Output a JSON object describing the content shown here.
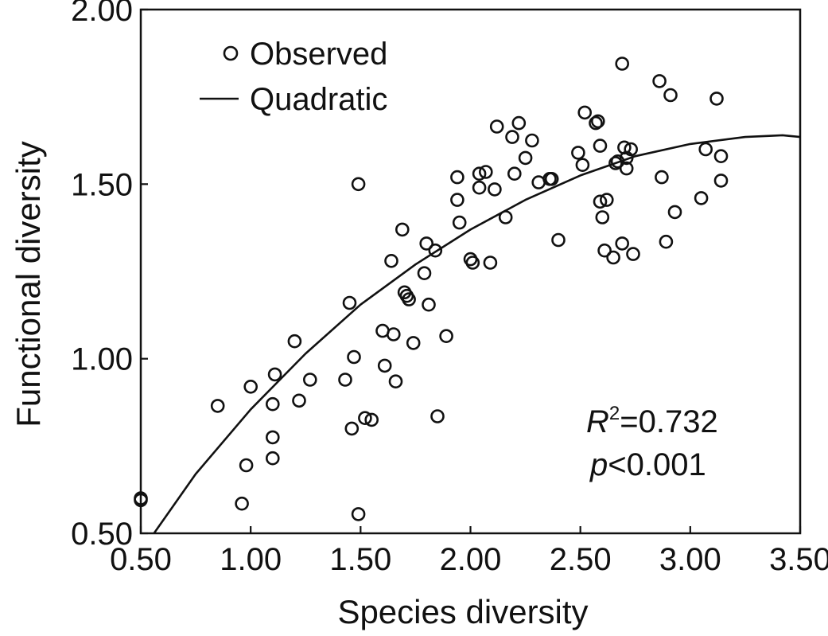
{
  "chart_data": {
    "type": "scatter",
    "xlabel": "Species diversity",
    "ylabel": "Functional diversity",
    "xlim": [
      0.5,
      3.5
    ],
    "ylim": [
      0.5,
      2.0
    ],
    "xticks": [
      "0.50",
      "1.00",
      "1.50",
      "2.00",
      "2.50",
      "3.00",
      "3.50"
    ],
    "yticks": [
      "0.50",
      "1.00",
      "1.50",
      "2.00"
    ],
    "legend": {
      "position": "top-left",
      "entries": [
        {
          "label": "Observed",
          "marker": "open-circle"
        },
        {
          "label": "Quadratic",
          "marker": "line"
        }
      ]
    },
    "annotations": {
      "r2_symbol": "R",
      "r2_sup": "2",
      "r2_value": "=0.732",
      "p_symbol": "p",
      "p_value": "<0.001"
    },
    "grid": false,
    "colors": {
      "points": "#111111",
      "fit_line": "#111111"
    },
    "series": [
      {
        "name": "Observed",
        "type": "scatter",
        "points": [
          [
            0.5,
            0.6
          ],
          [
            0.5,
            0.595
          ],
          [
            0.85,
            0.865
          ],
          [
            0.96,
            0.585
          ],
          [
            0.98,
            0.695
          ],
          [
            1.0,
            0.92
          ],
          [
            1.1,
            0.87
          ],
          [
            1.1,
            0.775
          ],
          [
            1.1,
            0.715
          ],
          [
            1.11,
            0.955
          ],
          [
            1.2,
            1.05
          ],
          [
            1.22,
            0.88
          ],
          [
            1.27,
            0.94
          ],
          [
            1.43,
            0.94
          ],
          [
            1.45,
            1.16
          ],
          [
            1.46,
            0.8
          ],
          [
            1.47,
            1.005
          ],
          [
            1.49,
            1.5
          ],
          [
            1.49,
            0.555
          ],
          [
            1.52,
            0.83
          ],
          [
            1.55,
            0.825
          ],
          [
            1.6,
            1.08
          ],
          [
            1.61,
            0.98
          ],
          [
            1.64,
            1.28
          ],
          [
            1.65,
            1.07
          ],
          [
            1.66,
            0.935
          ],
          [
            1.69,
            1.37
          ],
          [
            1.7,
            1.19
          ],
          [
            1.71,
            1.18
          ],
          [
            1.72,
            1.17
          ],
          [
            1.74,
            1.045
          ],
          [
            1.79,
            1.245
          ],
          [
            1.8,
            1.33
          ],
          [
            1.81,
            1.155
          ],
          [
            1.84,
            1.31
          ],
          [
            1.85,
            0.835
          ],
          [
            1.89,
            1.065
          ],
          [
            1.94,
            1.52
          ],
          [
            1.94,
            1.455
          ],
          [
            1.95,
            1.39
          ],
          [
            2.0,
            1.285
          ],
          [
            2.01,
            1.275
          ],
          [
            2.04,
            1.53
          ],
          [
            2.04,
            1.49
          ],
          [
            2.07,
            1.535
          ],
          [
            2.09,
            1.275
          ],
          [
            2.11,
            1.485
          ],
          [
            2.12,
            1.665
          ],
          [
            2.16,
            1.405
          ],
          [
            2.19,
            1.635
          ],
          [
            2.2,
            1.53
          ],
          [
            2.22,
            1.675
          ],
          [
            2.25,
            1.575
          ],
          [
            2.28,
            1.625
          ],
          [
            2.31,
            1.505
          ],
          [
            2.36,
            1.515
          ],
          [
            2.37,
            1.515
          ],
          [
            2.4,
            1.34
          ],
          [
            2.49,
            1.59
          ],
          [
            2.51,
            1.555
          ],
          [
            2.52,
            1.705
          ],
          [
            2.57,
            1.675
          ],
          [
            2.58,
            1.68
          ],
          [
            2.59,
            1.61
          ],
          [
            2.59,
            1.45
          ],
          [
            2.6,
            1.405
          ],
          [
            2.61,
            1.31
          ],
          [
            2.62,
            1.455
          ],
          [
            2.65,
            1.29
          ],
          [
            2.66,
            1.56
          ],
          [
            2.67,
            1.565
          ],
          [
            2.69,
            1.845
          ],
          [
            2.69,
            1.33
          ],
          [
            2.7,
            1.605
          ],
          [
            2.71,
            1.575
          ],
          [
            2.71,
            1.545
          ],
          [
            2.73,
            1.6
          ],
          [
            2.74,
            1.3
          ],
          [
            2.86,
            1.795
          ],
          [
            2.87,
            1.52
          ],
          [
            2.89,
            1.335
          ],
          [
            2.91,
            1.755
          ],
          [
            2.93,
            1.42
          ],
          [
            3.05,
            1.46
          ],
          [
            3.07,
            1.6
          ],
          [
            3.12,
            1.745
          ],
          [
            3.14,
            1.58
          ],
          [
            3.14,
            1.51
          ]
        ]
      },
      {
        "name": "Quadratic",
        "type": "line",
        "x": [
          0.56,
          0.75,
          1.0,
          1.25,
          1.5,
          1.75,
          2.0,
          2.25,
          2.5,
          2.75,
          3.0,
          3.25,
          3.42,
          3.5
        ],
        "y": [
          0.5,
          0.67,
          0.855,
          1.015,
          1.155,
          1.27,
          1.37,
          1.455,
          1.525,
          1.58,
          1.615,
          1.635,
          1.64,
          1.635
        ]
      }
    ]
  }
}
